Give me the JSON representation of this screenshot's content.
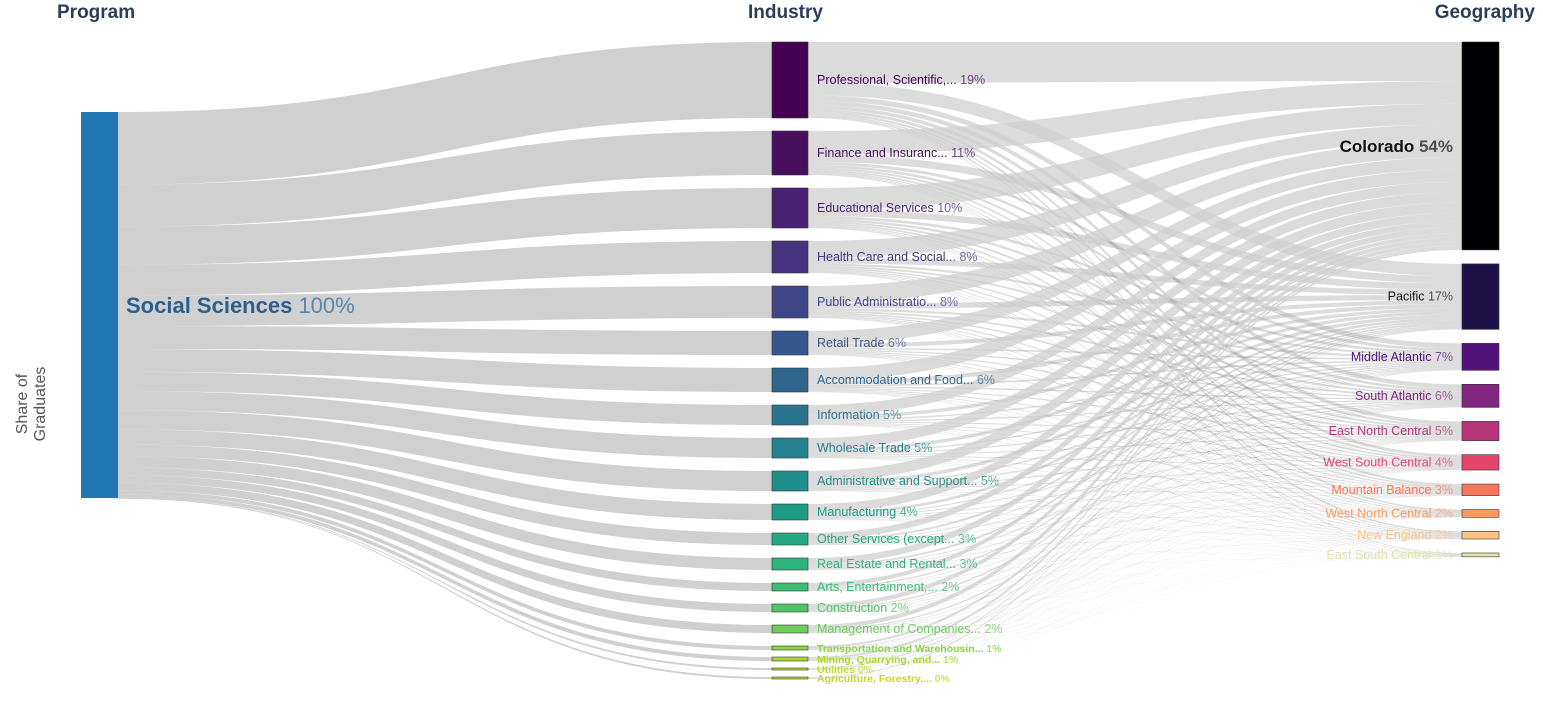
{
  "chart_data": {
    "type": "sankey",
    "ylabel": "Share of Graduates",
    "columns": [
      "Program",
      "Industry",
      "Geography"
    ],
    "program": [
      {
        "name": "Social Sciences",
        "pct": "100%",
        "value": 100,
        "color": "#1f77b4"
      }
    ],
    "industry": [
      {
        "name": "Professional, Scientific,...",
        "pct": "19%",
        "value": 19,
        "color": "#440154"
      },
      {
        "name": "Finance and Insuranc...",
        "pct": "11%",
        "value": 11,
        "color": "#46105f"
      },
      {
        "name": "Educational Services",
        "pct": "10%",
        "value": 10,
        "color": "#482173"
      },
      {
        "name": "Health Care and Social...",
        "pct": "8%",
        "value": 8,
        "color": "#463480"
      },
      {
        "name": "Public Administratio...",
        "pct": "8%",
        "value": 8,
        "color": "#3f4688"
      },
      {
        "name": "Retail Trade",
        "pct": "6%",
        "value": 6,
        "color": "#37568b"
      },
      {
        "name": "Accommodation and Food...",
        "pct": "6%",
        "value": 6,
        "color": "#30658d"
      },
      {
        "name": "Information",
        "pct": "5%",
        "value": 5,
        "color": "#2a748e"
      },
      {
        "name": "Wholesale Trade",
        "pct": "5%",
        "value": 5,
        "color": "#25818e"
      },
      {
        "name": "Administrative and Support...",
        "pct": "5%",
        "value": 5,
        "color": "#208f8c"
      },
      {
        "name": "Manufacturing",
        "pct": "4%",
        "value": 4,
        "color": "#1f9c88"
      },
      {
        "name": "Other Services (except...",
        "pct": "3%",
        "value": 3,
        "color": "#25a883"
      },
      {
        "name": "Real Estate and Rental...",
        "pct": "3%",
        "value": 3,
        "color": "#2eb37c"
      },
      {
        "name": "Arts, Entertainment,...",
        "pct": "2%",
        "value": 2,
        "color": "#3fbc73"
      },
      {
        "name": "Construction",
        "pct": "2%",
        "value": 2,
        "color": "#52c569"
      },
      {
        "name": "Management of Companies...",
        "pct": "2%",
        "value": 2,
        "color": "#6ccd5a"
      },
      {
        "name": "Transportation and Warehousin...",
        "pct": "1%",
        "value": 1,
        "color": "#8ad547"
      },
      {
        "name": "Mining, Quarrying, and...",
        "pct": "1%",
        "value": 1,
        "color": "#a6da31"
      },
      {
        "name": "Utilities",
        "pct": "0%",
        "value": 0,
        "color": "#c0dc2a"
      },
      {
        "name": "Agriculture, Forestry,...",
        "pct": "0%",
        "value": 0,
        "color": "#c8d52b"
      }
    ],
    "geography": [
      {
        "name": "Colorado",
        "pct": "54%",
        "value": 54,
        "color": "#000004"
      },
      {
        "name": "Pacific",
        "pct": "17%",
        "value": 17,
        "color": "#1d1147"
      },
      {
        "name": "Middle Atlantic",
        "pct": "7%",
        "value": 7,
        "color": "#51127c"
      },
      {
        "name": "South Atlantic",
        "pct": "6%",
        "value": 6,
        "color": "#822681"
      },
      {
        "name": "East North Central",
        "pct": "5%",
        "value": 5,
        "color": "#b63679"
      },
      {
        "name": "West South Central",
        "pct": "4%",
        "value": 4,
        "color": "#e4456a"
      },
      {
        "name": "Mountain Balance",
        "pct": "3%",
        "value": 3,
        "color": "#f8765c"
      },
      {
        "name": "West North Central",
        "pct": "2%",
        "value": 2,
        "color": "#fb9b5e"
      },
      {
        "name": "New England",
        "pct": "2%",
        "value": 2,
        "color": "#fec287"
      },
      {
        "name": "East South Central",
        "pct": "1%",
        "value": 1,
        "color": "#e3e2a8"
      }
    ]
  }
}
